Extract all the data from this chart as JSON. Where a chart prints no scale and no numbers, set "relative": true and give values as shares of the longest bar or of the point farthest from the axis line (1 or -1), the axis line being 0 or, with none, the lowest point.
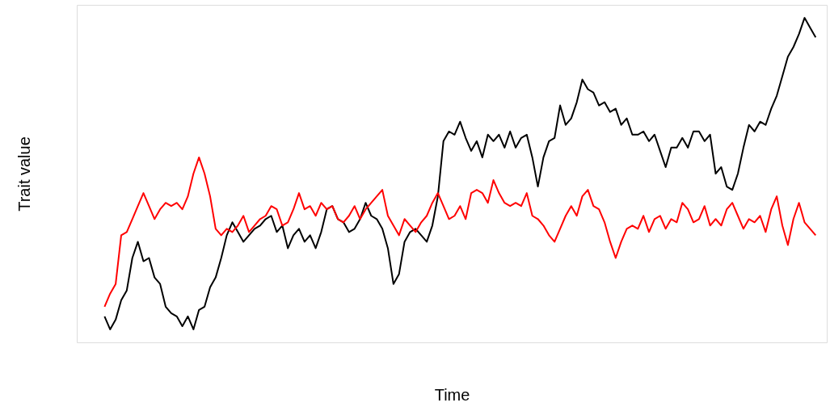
{
  "chart_data": {
    "type": "line",
    "relative": true,
    "xlabel": "Time",
    "ylabel": "Trait value",
    "legend": false,
    "grid": false,
    "tick_labels": false,
    "categories": [
      null,
      null,
      null,
      null,
      null,
      null,
      null,
      null,
      null,
      null,
      null,
      null,
      null,
      null,
      null,
      null,
      null,
      null,
      null,
      null,
      null,
      null,
      null,
      null,
      null,
      null,
      null,
      null,
      null,
      null,
      null,
      null,
      null,
      null,
      null,
      null,
      null,
      null,
      null,
      null,
      null,
      null,
      null,
      null,
      null,
      null,
      null,
      null,
      null,
      null,
      null,
      null,
      null,
      null,
      null,
      null,
      null,
      null,
      null,
      null,
      null,
      null,
      null,
      null,
      null,
      null,
      null,
      null,
      null,
      null,
      null,
      null,
      null,
      null,
      null,
      null,
      null,
      null,
      null,
      null,
      null,
      null,
      null,
      null,
      null,
      null,
      null,
      null,
      null,
      null,
      null,
      null,
      null,
      null,
      null,
      null,
      null,
      null,
      null,
      null,
      null,
      null,
      null,
      null,
      null,
      null,
      null,
      null,
      null,
      null,
      null,
      null,
      null,
      null,
      null,
      null,
      null,
      null,
      null,
      null,
      null,
      null,
      null,
      null,
      null,
      null,
      null,
      null,
      null
    ],
    "series": [
      {
        "color": "#000000",
        "values": [
          0.08,
          0.04,
          0.07,
          0.13,
          0.16,
          0.26,
          0.31,
          0.25,
          0.26,
          0.2,
          0.18,
          0.11,
          0.09,
          0.08,
          0.05,
          0.08,
          0.04,
          0.1,
          0.11,
          0.17,
          0.2,
          0.26,
          0.33,
          0.37,
          0.34,
          0.31,
          0.33,
          0.35,
          0.36,
          0.38,
          0.39,
          0.34,
          0.36,
          0.29,
          0.33,
          0.35,
          0.31,
          0.33,
          0.29,
          0.34,
          0.41,
          0.42,
          0.38,
          0.37,
          0.34,
          0.35,
          0.38,
          0.43,
          0.39,
          0.38,
          0.35,
          0.29,
          0.18,
          0.21,
          0.31,
          0.34,
          0.35,
          0.33,
          0.31,
          0.36,
          0.45,
          0.62,
          0.65,
          0.64,
          0.68,
          0.63,
          0.59,
          0.62,
          0.57,
          0.64,
          0.62,
          0.64,
          0.6,
          0.65,
          0.6,
          0.63,
          0.64,
          0.57,
          0.48,
          0.57,
          0.62,
          0.63,
          0.73,
          0.67,
          0.69,
          0.74,
          0.81,
          0.78,
          0.77,
          0.73,
          0.74,
          0.71,
          0.72,
          0.67,
          0.69,
          0.64,
          0.64,
          0.65,
          0.62,
          0.64,
          0.59,
          0.54,
          0.6,
          0.6,
          0.63,
          0.6,
          0.65,
          0.65,
          0.62,
          0.64,
          0.52,
          0.54,
          0.48,
          0.47,
          0.52,
          0.6,
          0.67,
          0.65,
          0.68,
          0.67,
          0.72,
          0.76,
          0.82,
          0.88,
          0.91,
          0.95,
          1,
          0.97,
          0.94
        ]
      },
      {
        "color": "#ff0000",
        "values": [
          0.11,
          0.15,
          0.18,
          0.33,
          0.34,
          0.38,
          0.42,
          0.46,
          0.42,
          0.38,
          0.41,
          0.43,
          0.42,
          0.43,
          0.41,
          0.45,
          0.52,
          0.57,
          0.52,
          0.45,
          0.35,
          0.33,
          0.35,
          0.34,
          0.36,
          0.39,
          0.34,
          0.36,
          0.38,
          0.39,
          0.42,
          0.41,
          0.36,
          0.37,
          0.41,
          0.46,
          0.41,
          0.42,
          0.39,
          0.43,
          0.41,
          0.42,
          0.38,
          0.37,
          0.39,
          0.42,
          0.38,
          0.41,
          0.43,
          0.45,
          0.47,
          0.39,
          0.36,
          0.33,
          0.38,
          0.36,
          0.34,
          0.37,
          0.39,
          0.43,
          0.46,
          0.42,
          0.38,
          0.39,
          0.42,
          0.38,
          0.46,
          0.47,
          0.46,
          0.43,
          0.5,
          0.46,
          0.43,
          0.42,
          0.43,
          0.42,
          0.46,
          0.39,
          0.38,
          0.36,
          0.33,
          0.31,
          0.35,
          0.39,
          0.42,
          0.39,
          0.45,
          0.47,
          0.42,
          0.41,
          0.37,
          0.31,
          0.26,
          0.31,
          0.35,
          0.36,
          0.35,
          0.39,
          0.34,
          0.38,
          0.39,
          0.35,
          0.38,
          0.37,
          0.43,
          0.41,
          0.37,
          0.38,
          0.42,
          0.36,
          0.38,
          0.36,
          0.41,
          0.43,
          0.39,
          0.35,
          0.38,
          0.37,
          0.39,
          0.34,
          0.41,
          0.45,
          0.36,
          0.3,
          0.38,
          0.43,
          0.37,
          0.35,
          0.33
        ]
      }
    ]
  }
}
